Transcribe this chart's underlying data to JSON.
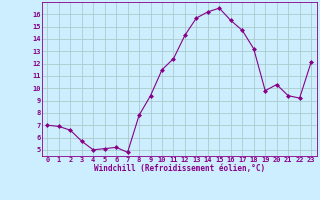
{
  "x": [
    0,
    1,
    2,
    3,
    4,
    5,
    6,
    7,
    8,
    9,
    10,
    11,
    12,
    13,
    14,
    15,
    16,
    17,
    18,
    19,
    20,
    21,
    22,
    23
  ],
  "y": [
    7.0,
    6.9,
    6.6,
    5.7,
    5.0,
    5.1,
    5.2,
    4.8,
    7.8,
    9.4,
    11.5,
    12.4,
    14.3,
    15.7,
    16.2,
    16.5,
    15.5,
    14.7,
    13.2,
    9.8,
    10.3,
    9.4,
    9.2,
    12.1
  ],
  "line_color": "#880088",
  "marker": "D",
  "marker_size": 2.0,
  "bg_color": "#cceeff",
  "grid_color": "#aacccc",
  "xlabel": "Windchill (Refroidissement éolien,°C)",
  "xlabel_color": "#880088",
  "tick_color": "#880088",
  "ylim": [
    4.5,
    17.0
  ],
  "xlim": [
    -0.5,
    23.5
  ],
  "yticks": [
    5,
    6,
    7,
    8,
    9,
    10,
    11,
    12,
    13,
    14,
    15,
    16
  ],
  "xticks": [
    0,
    1,
    2,
    3,
    4,
    5,
    6,
    7,
    8,
    9,
    10,
    11,
    12,
    13,
    14,
    15,
    16,
    17,
    18,
    19,
    20,
    21,
    22,
    23
  ],
  "tick_fontsize": 5.0,
  "xlabel_fontsize": 5.5
}
